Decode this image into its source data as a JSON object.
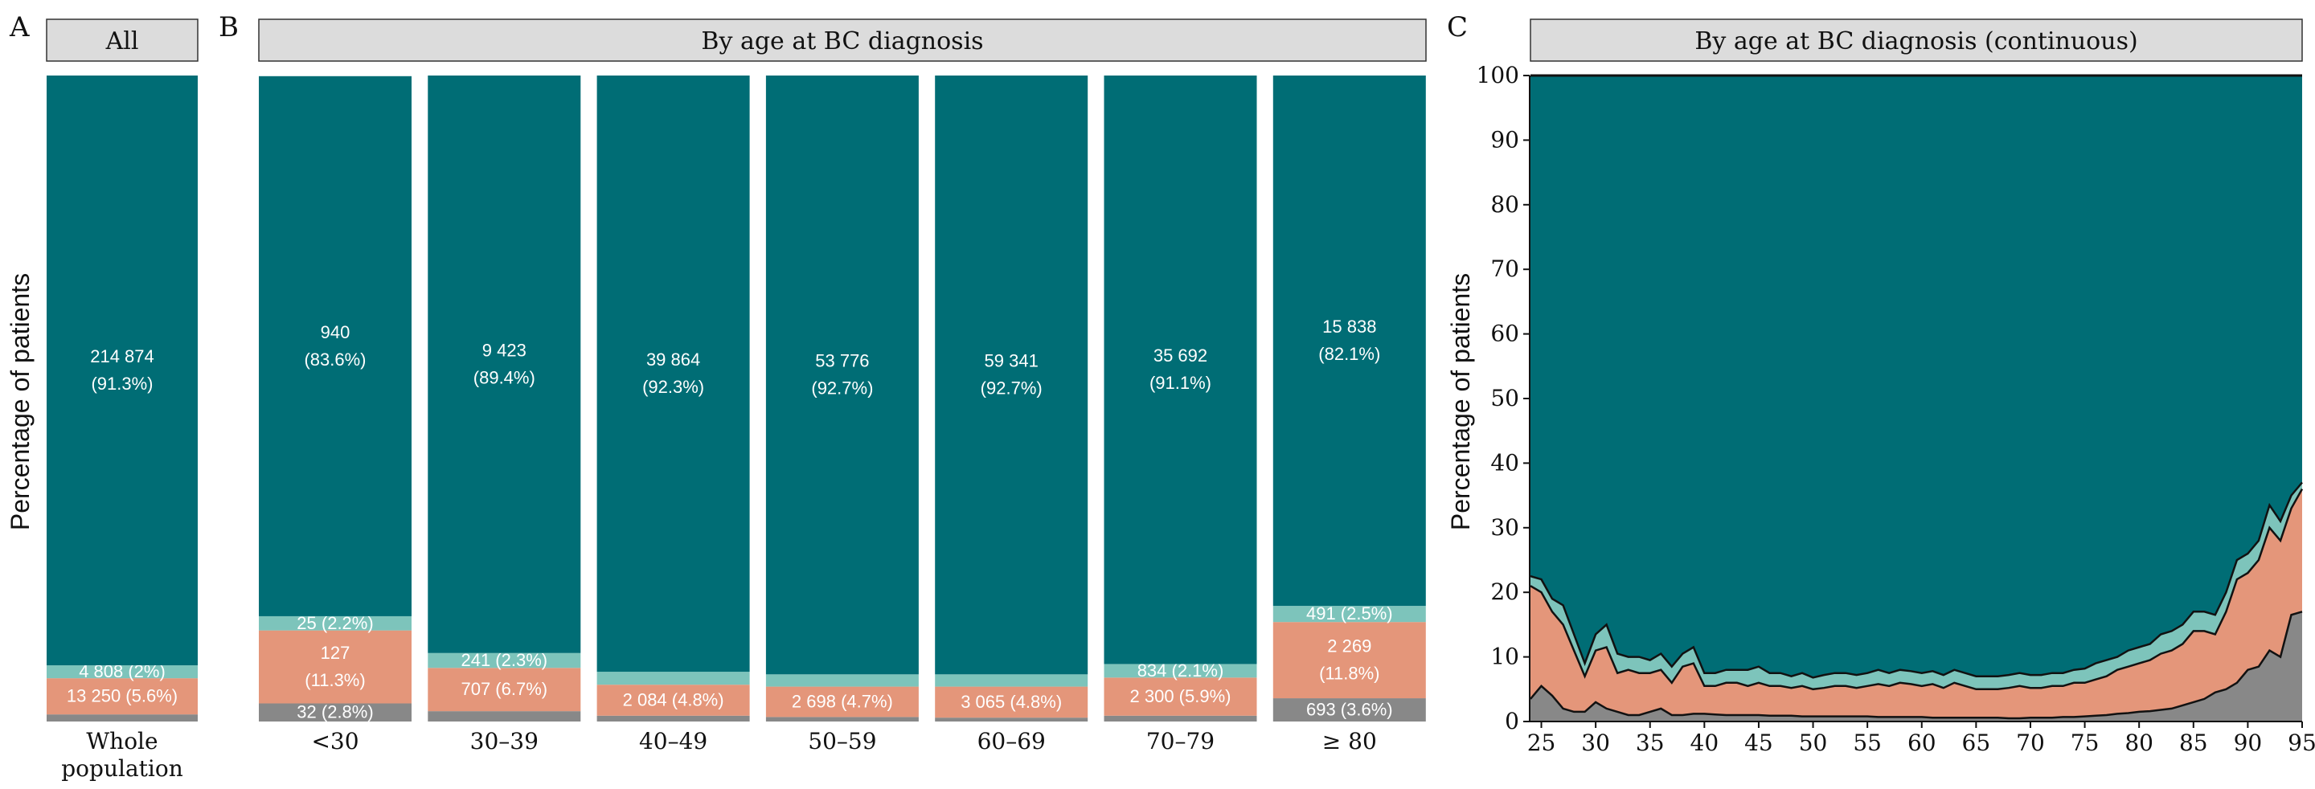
{
  "colors": {
    "big": "#006d75",
    "light": "#7dc4bb",
    "salmon": "#e4967a",
    "gray": "#888888"
  },
  "chart_data": [
    {
      "panel": "A",
      "type": "bar",
      "stacked": true,
      "strip_title": "All",
      "ylabel": "Percentage of patients",
      "categories": [
        "Whole\npopulation"
      ],
      "ylim": [
        0,
        100
      ],
      "series": [
        {
          "color_key": "gray",
          "values": [
            1.1
          ],
          "labels": [
            ""
          ]
        },
        {
          "color_key": "salmon",
          "values": [
            5.6
          ],
          "labels": [
            "13 250 (5.6%)"
          ]
        },
        {
          "color_key": "light",
          "values": [
            2.0
          ],
          "labels": [
            "4 808 (2%)"
          ]
        },
        {
          "color_key": "big",
          "values": [
            91.3
          ],
          "labels": [
            "214 874\n(91.3%)"
          ]
        }
      ]
    },
    {
      "panel": "B",
      "type": "bar",
      "stacked": true,
      "strip_title": "By age at BC diagnosis",
      "categories": [
        "<30",
        "30–39",
        "40–49",
        "50–59",
        "60–69",
        "70–79",
        "≥ 80"
      ],
      "ylim": [
        0,
        100
      ],
      "series": [
        {
          "color_key": "gray",
          "values": [
            2.8,
            1.6,
            0.9,
            0.7,
            0.6,
            0.9,
            3.6
          ],
          "labels": [
            "32 (2.8%)",
            "",
            "",
            "",
            "",
            "",
            "693 (3.6%)"
          ]
        },
        {
          "color_key": "salmon",
          "values": [
            11.3,
            6.7,
            4.8,
            4.7,
            4.8,
            5.9,
            11.8
          ],
          "labels": [
            "127\n(11.3%)",
            "707 (6.7%)",
            "2 084 (4.8%)",
            "2 698 (4.7%)",
            "3 065 (4.8%)",
            "2 300 (5.9%)",
            "2 269\n(11.8%)"
          ]
        },
        {
          "color_key": "light",
          "values": [
            2.2,
            2.3,
            2.0,
            1.9,
            1.9,
            2.1,
            2.5
          ],
          "labels": [
            "25 (2.2%)",
            "241 (2.3%)",
            "",
            "",
            "",
            "834 (2.1%)",
            "491 (2.5%)"
          ]
        },
        {
          "color_key": "big",
          "values": [
            83.6,
            89.4,
            92.3,
            92.7,
            92.7,
            91.1,
            82.1
          ],
          "labels": [
            "940\n(83.6%)",
            "9 423\n(89.4%)",
            "39 864\n(92.3%)",
            "53 776\n(92.7%)",
            "59 341\n(92.7%)",
            "35 692\n(91.1%)",
            "15 838\n(82.1%)"
          ]
        }
      ]
    },
    {
      "panel": "C",
      "type": "area",
      "stacked": true,
      "strip_title": "By age at BC diagnosis (continuous)",
      "ylabel": "Percentage of patients",
      "xlim": [
        24,
        95
      ],
      "ylim": [
        0,
        100
      ],
      "xticks": [
        25,
        30,
        35,
        40,
        45,
        50,
        55,
        60,
        65,
        70,
        75,
        80,
        85,
        90,
        95
      ],
      "yticks": [
        0,
        10,
        20,
        30,
        40,
        50,
        60,
        70,
        80,
        90,
        100
      ],
      "x": [
        24,
        25,
        26,
        27,
        28,
        29,
        30,
        31,
        32,
        33,
        34,
        35,
        36,
        37,
        38,
        39,
        40,
        41,
        42,
        43,
        44,
        45,
        46,
        47,
        48,
        49,
        50,
        51,
        52,
        53,
        54,
        55,
        56,
        57,
        58,
        59,
        60,
        61,
        62,
        63,
        64,
        65,
        66,
        67,
        68,
        69,
        70,
        71,
        72,
        73,
        74,
        75,
        76,
        77,
        78,
        79,
        80,
        81,
        82,
        83,
        84,
        85,
        86,
        87,
        88,
        89,
        90,
        91,
        92,
        93,
        94,
        95
      ],
      "boundaries": [
        [
          3.5,
          5.5,
          4.0,
          2.0,
          1.5,
          1.5,
          3.0,
          2.0,
          1.5,
          1.0,
          1.0,
          1.5,
          2.0,
          1.0,
          1.0,
          1.2,
          1.2,
          1.1,
          1.0,
          1.0,
          1.0,
          1.0,
          0.9,
          0.9,
          0.9,
          0.8,
          0.8,
          0.8,
          0.8,
          0.8,
          0.8,
          0.8,
          0.7,
          0.7,
          0.7,
          0.7,
          0.7,
          0.6,
          0.6,
          0.6,
          0.6,
          0.6,
          0.6,
          0.6,
          0.5,
          0.5,
          0.6,
          0.6,
          0.6,
          0.7,
          0.7,
          0.8,
          0.9,
          1.0,
          1.2,
          1.3,
          1.5,
          1.6,
          1.8,
          2.0,
          2.5,
          3.0,
          3.5,
          4.5,
          5.0,
          6.0,
          8.0,
          8.5,
          11.0,
          10.0,
          16.5,
          17.0
        ],
        [
          21.0,
          20.0,
          17.0,
          15.0,
          11.0,
          7.0,
          11.0,
          11.5,
          7.5,
          8.0,
          7.5,
          7.5,
          8.0,
          6.0,
          8.5,
          9.0,
          5.5,
          5.5,
          6.0,
          6.0,
          5.5,
          6.0,
          5.5,
          5.5,
          5.2,
          5.5,
          5.0,
          5.2,
          5.5,
          5.5,
          5.2,
          5.5,
          5.8,
          5.5,
          6.0,
          5.8,
          5.5,
          5.8,
          5.2,
          6.0,
          5.5,
          5.0,
          5.0,
          5.0,
          5.2,
          5.5,
          5.2,
          5.2,
          5.5,
          5.5,
          6.0,
          6.0,
          6.5,
          7.0,
          8.0,
          8.5,
          9.0,
          9.5,
          10.5,
          11.0,
          12.0,
          14.0,
          14.0,
          13.5,
          17.0,
          22.0,
          23.0,
          25.0,
          30.0,
          28.0,
          33.0,
          36.0
        ],
        [
          22.5,
          22.0,
          19.0,
          18.0,
          13.5,
          9.0,
          13.5,
          15.0,
          10.5,
          10.0,
          10.0,
          9.5,
          10.5,
          8.5,
          10.5,
          11.5,
          7.5,
          7.5,
          8.0,
          8.0,
          8.0,
          8.5,
          7.5,
          7.5,
          7.0,
          7.5,
          6.8,
          7.2,
          7.5,
          7.5,
          7.2,
          7.5,
          8.0,
          7.5,
          8.0,
          7.8,
          7.5,
          7.8,
          7.2,
          8.0,
          7.5,
          7.0,
          7.0,
          7.0,
          7.2,
          7.5,
          7.2,
          7.2,
          7.5,
          7.5,
          8.0,
          8.2,
          9.0,
          9.5,
          10.0,
          11.0,
          11.5,
          12.0,
          13.5,
          14.0,
          15.0,
          17.0,
          17.0,
          16.5,
          20.0,
          25.0,
          26.0,
          28.0,
          33.5,
          31.0,
          35.0,
          37.0
        ]
      ]
    }
  ]
}
